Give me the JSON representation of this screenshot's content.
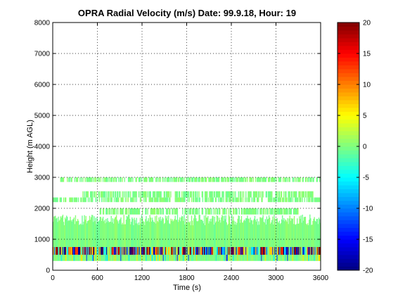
{
  "chart_data": {
    "type": "heatmap",
    "title": "OPRA Radial Velocity (m/s)  Date: 99.9.18, Hour: 19",
    "xlabel": "Time (s)",
    "ylabel": "Height (m AGL)",
    "xlim": [
      0,
      3600
    ],
    "ylim": [
      0,
      8000
    ],
    "x_ticks": [
      "0",
      "600",
      "1200",
      "1800",
      "2400",
      "3000",
      "3600"
    ],
    "y_ticks": [
      "0",
      "1000",
      "2000",
      "3000",
      "4000",
      "5000",
      "6000",
      "7000",
      "8000"
    ],
    "grid": true,
    "colorbar": {
      "range": [
        -20,
        20
      ],
      "ticks": [
        "-20",
        "-15",
        "-10",
        "-5",
        "0",
        "5",
        "10",
        "15",
        "20"
      ],
      "colormap": "jet"
    },
    "layers": [
      {
        "height_range": [
          300,
          500
        ],
        "time_range": [
          0,
          3600
        ],
        "velocity": 0,
        "coverage": "continuous, mixed yellow/cyan/blue speckle"
      },
      {
        "height_range": [
          500,
          750
        ],
        "time_range": [
          0,
          3600
        ],
        "velocity": 0,
        "coverage": "strongly mixed: dark red, red, yellow, cyan, blue, dark blue"
      },
      {
        "height_range": [
          750,
          1800
        ],
        "time_range": [
          0,
          3600
        ],
        "velocity": 0,
        "coverage": "continuous, ragged top"
      },
      {
        "height_range": [
          1800,
          2000
        ],
        "time_range": [
          600,
          3300
        ],
        "velocity": 0,
        "coverage": "intermittent"
      },
      {
        "height_range": [
          2200,
          2350
        ],
        "time_range": [
          0,
          3600
        ],
        "velocity": 0,
        "coverage": "intermittent band"
      },
      {
        "height_range": [
          2350,
          2550
        ],
        "time_range": [
          400,
          3500
        ],
        "velocity": 0,
        "coverage": "patchy"
      },
      {
        "height_range": [
          2850,
          3000
        ],
        "time_range": [
          100,
          3600
        ],
        "velocity": 0,
        "coverage": "patchy band"
      }
    ]
  }
}
